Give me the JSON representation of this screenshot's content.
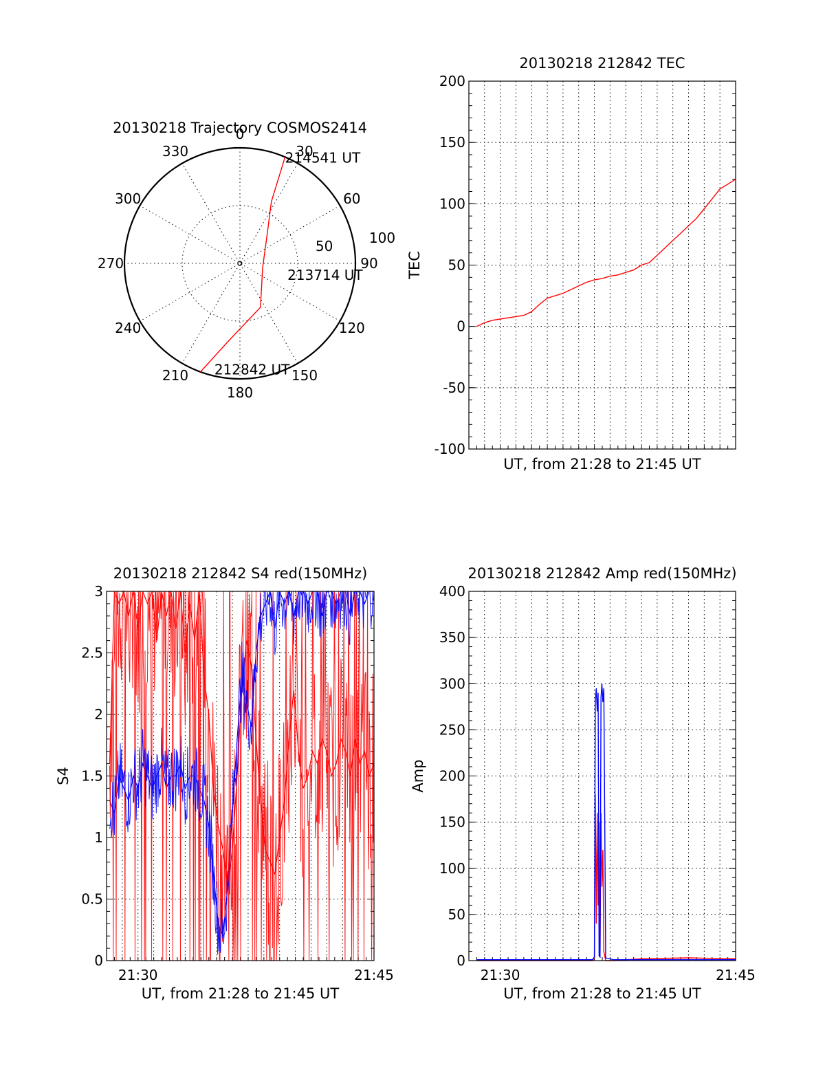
{
  "colors": {
    "primary": "#ff0000",
    "secondary": "#0000ff",
    "axis": "#000000"
  },
  "chart_data": [
    {
      "type": "polar",
      "title": "20130218 Trajectory COSMOS2414",
      "angle_labels": [
        "0",
        "30",
        "60",
        "90",
        "120",
        "150",
        "180",
        "210",
        "240",
        "270",
        "300",
        "330"
      ],
      "radius_labels": [
        "50",
        "100"
      ],
      "rlim": [
        0,
        100
      ],
      "grid": true,
      "series": [
        {
          "color": "#ff0000",
          "points": [
            [
              200.0,
              100.0
            ],
            [
              189.0,
              69.0
            ],
            [
              155.0,
              42.0
            ],
            [
              100.0,
              20.0
            ],
            [
              45.0,
              33.0
            ],
            [
              27.0,
              60.0
            ],
            [
              24.5,
              80.0
            ],
            [
              23.0,
              100.0
            ]
          ]
        }
      ],
      "annotations": [
        {
          "text": "214541 UT",
          "angle": 23.0,
          "radius": 100.0
        },
        {
          "text": "213714 UT",
          "angle": 100.0,
          "radius": 20.0
        },
        {
          "text": "212842 UT",
          "angle": 190.0,
          "radius": 100.0
        }
      ]
    },
    {
      "type": "line",
      "title": "20130218 212842 TEC",
      "xlabel": "UT, from 21:28 to 21:45 UT",
      "ylabel": "TEC",
      "xlim": [
        21.4667,
        21.75
      ],
      "ylim": [
        -100,
        200
      ],
      "yticks": [
        "-100",
        "-50",
        "0",
        "50",
        "100",
        "150",
        "200"
      ],
      "grid": true,
      "series": [
        {
          "color": "#ff0000",
          "x": [
            21.475,
            21.4833,
            21.4917,
            21.5,
            21.5083,
            21.5167,
            21.525,
            21.5333,
            21.5417,
            21.55,
            21.5583,
            21.5667,
            21.575,
            21.5833,
            21.5917,
            21.6,
            21.6083,
            21.6167,
            21.625,
            21.6333,
            21.6417,
            21.65,
            21.6583,
            21.6667,
            21.675,
            21.6833,
            21.6917,
            21.7,
            21.7083,
            21.7167,
            21.725,
            21.7333,
            21.7417,
            21.75
          ],
          "values": [
            0,
            3,
            5,
            6,
            7,
            8,
            9,
            12,
            18,
            23,
            25,
            27,
            30,
            33,
            36,
            38,
            39,
            41,
            42,
            44,
            46,
            50,
            52,
            58,
            64,
            70,
            76,
            82,
            88,
            96,
            104,
            112,
            116,
            120
          ]
        }
      ]
    },
    {
      "type": "line",
      "title": "20130218 212842 S4 red(150MHz)",
      "xlabel": "UT, from 21:28 to 21:45 UT",
      "ylabel": "S4",
      "xlim": [
        21.4667,
        21.75
      ],
      "ylim": [
        0,
        3
      ],
      "xticks": [
        "21:30",
        "21:45"
      ],
      "yticks": [
        "0",
        "0.5",
        "1",
        "1.5",
        "2",
        "2.5",
        "3"
      ],
      "grid": true,
      "series": [
        {
          "color": "#ff0000",
          "x": [
            21.47,
            21.475,
            21.48,
            21.485,
            21.49,
            21.495,
            21.5,
            21.505,
            21.51,
            21.515,
            21.52,
            21.525,
            21.53,
            21.535,
            21.54,
            21.545,
            21.55,
            21.555,
            21.56,
            21.565,
            21.57,
            21.575,
            21.58,
            21.585,
            21.59,
            21.595,
            21.6,
            21.605,
            21.61,
            21.615,
            21.62,
            21.625,
            21.63,
            21.635,
            21.64,
            21.645,
            21.65,
            21.655,
            21.66,
            21.665,
            21.67,
            21.675,
            21.68,
            21.685,
            21.69,
            21.695,
            21.7,
            21.705,
            21.71,
            21.715,
            21.72,
            21.725,
            21.73,
            21.735,
            21.74,
            21.745,
            21.75
          ],
          "values": [
            1.6,
            3.0,
            2.9,
            3.0,
            2.8,
            3.0,
            2.7,
            3.0,
            2.9,
            3.0,
            2.6,
            3.0,
            2.8,
            3.0,
            2.7,
            3.0,
            2.5,
            2.9,
            2.6,
            3.0,
            2.3,
            2.0,
            1.4,
            1.1,
            0.9,
            0.6,
            0.9,
            1.5,
            2.2,
            2.6,
            2.4,
            1.8,
            1.3,
            0.9,
            0.8,
            0.7,
            1.0,
            1.3,
            1.8,
            2.2,
            1.7,
            1.4,
            1.5,
            1.7,
            1.6,
            1.8,
            1.7,
            1.5,
            1.6,
            1.8,
            1.7,
            1.5,
            1.8,
            1.6,
            1.7,
            1.5,
            1.6
          ]
        },
        {
          "color": "#0000ff",
          "x": [
            21.47,
            21.475,
            21.48,
            21.485,
            21.49,
            21.495,
            21.5,
            21.505,
            21.51,
            21.515,
            21.52,
            21.525,
            21.53,
            21.535,
            21.54,
            21.545,
            21.55,
            21.555,
            21.56,
            21.565,
            21.57,
            21.575,
            21.58,
            21.585,
            21.59,
            21.595,
            21.6,
            21.605,
            21.61,
            21.615,
            21.62,
            21.625,
            21.63,
            21.635,
            21.64,
            21.645,
            21.65,
            21.655,
            21.66,
            21.665,
            21.67,
            21.675,
            21.68,
            21.685,
            21.69,
            21.695,
            21.7,
            21.705,
            21.71,
            21.715,
            21.72,
            21.725,
            21.73,
            21.735,
            21.74,
            21.745,
            21.75
          ],
          "values": [
            1.3,
            1.2,
            1.5,
            1.4,
            1.3,
            1.5,
            1.4,
            1.6,
            1.5,
            1.4,
            1.5,
            1.6,
            1.4,
            1.5,
            1.5,
            1.6,
            1.4,
            1.5,
            1.5,
            1.4,
            1.3,
            1.1,
            0.7,
            0.3,
            0.2,
            0.6,
            1.2,
            1.8,
            2.3,
            2.1,
            1.9,
            2.5,
            2.8,
            2.9,
            3.0,
            2.7,
            3.0,
            2.9,
            3.0,
            2.8,
            3.0,
            3.0,
            2.9,
            3.0,
            3.0,
            2.8,
            3.0,
            3.0,
            2.9,
            3.0,
            3.0,
            2.8,
            3.0,
            3.0,
            2.9,
            3.0,
            3.0
          ]
        }
      ]
    },
    {
      "type": "line",
      "title": "20130218 212842 Amp red(150MHz)",
      "xlabel": "UT, from 21:28 to 21:45 UT",
      "ylabel": "Amp",
      "xlim": [
        21.4667,
        21.75
      ],
      "ylim": [
        0,
        400
      ],
      "xticks": [
        "21:30",
        "21:45"
      ],
      "yticks": [
        "0",
        "50",
        "100",
        "150",
        "200",
        "250",
        "300",
        "350",
        "400"
      ],
      "grid": true,
      "series": [
        {
          "color": "#ff0000",
          "x": [
            21.475,
            21.5,
            21.55,
            21.598,
            21.6,
            21.601,
            21.602,
            21.603,
            21.604,
            21.605,
            21.606,
            21.607,
            21.608,
            21.609,
            21.61,
            21.612,
            21.62,
            21.65,
            21.7,
            21.75
          ],
          "values": [
            0,
            0,
            0,
            0,
            3,
            180,
            40,
            160,
            60,
            150,
            10,
            160,
            80,
            120,
            10,
            0,
            0,
            2,
            3,
            2
          ]
        },
        {
          "color": "#0000ff",
          "x": [
            21.475,
            21.5,
            21.55,
            21.598,
            21.6,
            21.601,
            21.602,
            21.603,
            21.604,
            21.605,
            21.606,
            21.607,
            21.608,
            21.609,
            21.61,
            21.612,
            21.62,
            21.65,
            21.7,
            21.75
          ],
          "values": [
            1,
            1,
            1,
            1,
            4,
            280,
            295,
            270,
            290,
            5,
            4,
            285,
            300,
            280,
            295,
            3,
            1,
            1,
            1,
            1
          ]
        }
      ]
    }
  ]
}
